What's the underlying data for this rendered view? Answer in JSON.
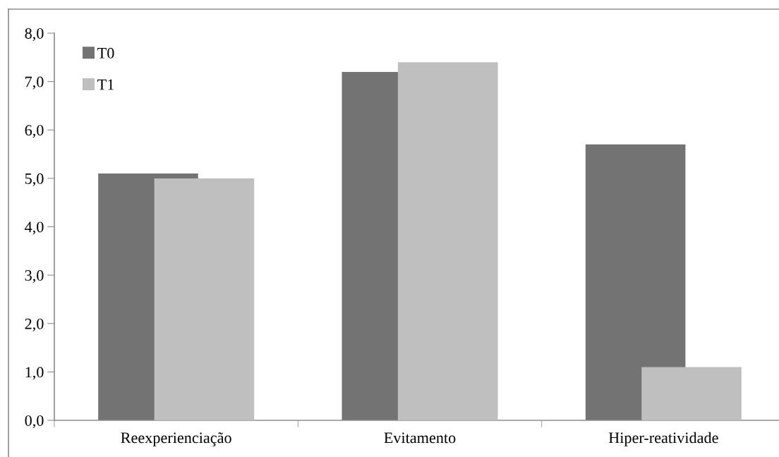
{
  "chart_data": {
    "type": "bar",
    "categories": [
      "Reexperienciação",
      "Evitamento",
      "Hiper-reatividade"
    ],
    "series": [
      {
        "name": "T0",
        "color": "#737373",
        "values": [
          5.1,
          7.2,
          5.7
        ]
      },
      {
        "name": "T1",
        "color": "#bfbfbf",
        "values": [
          5.0,
          7.4,
          1.1
        ]
      }
    ],
    "ylim": [
      0,
      8
    ],
    "yticks": [
      {
        "value": 0,
        "label": "0,0"
      },
      {
        "value": 1,
        "label": "1,0"
      },
      {
        "value": 2,
        "label": "2,0"
      },
      {
        "value": 3,
        "label": "3,0"
      },
      {
        "value": 4,
        "label": "4,0"
      },
      {
        "value": 5,
        "label": "5,0"
      },
      {
        "value": 6,
        "label": "6,0"
      },
      {
        "value": 7,
        "label": "7,0"
      },
      {
        "value": 8,
        "label": "8,0"
      }
    ],
    "grid": false,
    "legend": "top left"
  }
}
